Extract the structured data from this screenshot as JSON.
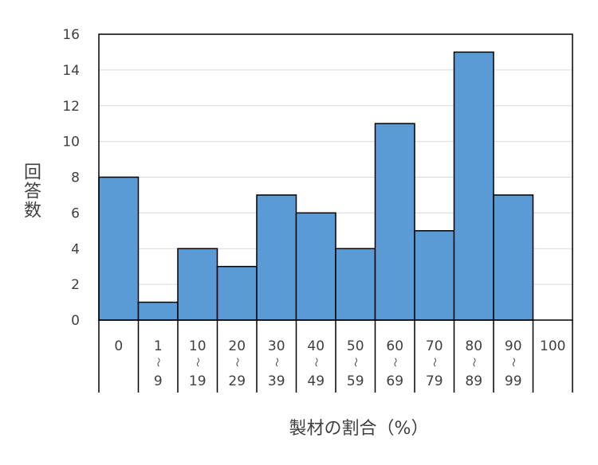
{
  "chart_data": {
    "type": "bar",
    "title": "",
    "ylabel": "回答数",
    "xlabel": "製材の割合（%）",
    "ylim": [
      0,
      16
    ],
    "ytick_step": 2,
    "y_ticks": [
      "0",
      "2",
      "4",
      "6",
      "8",
      "10",
      "12",
      "14",
      "16"
    ],
    "grid": true,
    "bar_color": "#5B9BD5",
    "categories": [
      {
        "top": "0",
        "sep": "",
        "bottom": ""
      },
      {
        "top": "1",
        "sep": "～",
        "bottom": "9"
      },
      {
        "top": "10",
        "sep": "～",
        "bottom": "19"
      },
      {
        "top": "20",
        "sep": "～",
        "bottom": "29"
      },
      {
        "top": "30",
        "sep": "～",
        "bottom": "39"
      },
      {
        "top": "40",
        "sep": "～",
        "bottom": "49"
      },
      {
        "top": "50",
        "sep": "～",
        "bottom": "59"
      },
      {
        "top": "60",
        "sep": "～",
        "bottom": "69"
      },
      {
        "top": "70",
        "sep": "～",
        "bottom": "79"
      },
      {
        "top": "80",
        "sep": "～",
        "bottom": "89"
      },
      {
        "top": "90",
        "sep": "～",
        "bottom": "99"
      },
      {
        "top": "100",
        "sep": "",
        "bottom": ""
      }
    ],
    "values": [
      8,
      1,
      4,
      3,
      7,
      6,
      4,
      11,
      5,
      15,
      7,
      0
    ]
  }
}
